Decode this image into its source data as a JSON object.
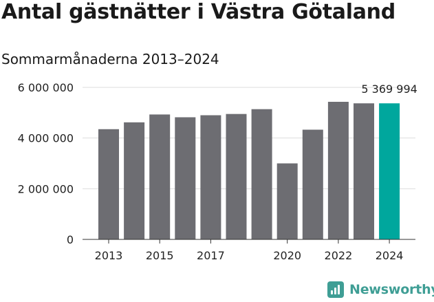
{
  "header": {
    "title": "Antal gästnätter i Västra Götaland",
    "subtitle": "Sommarmånaderna 2013–2024"
  },
  "chart_data": {
    "type": "bar",
    "categories": [
      "2013",
      "2014",
      "2015",
      "2016",
      "2017",
      "2018",
      "2019",
      "2020",
      "2021",
      "2022",
      "2023",
      "2024"
    ],
    "values": [
      4350000,
      4620000,
      4930000,
      4820000,
      4900000,
      4950000,
      5140000,
      3000000,
      4330000,
      5430000,
      5370000,
      5369994
    ],
    "x_tick_labels": [
      "2013",
      "",
      "2015",
      "",
      "2017",
      "",
      "",
      "2020",
      "",
      "2022",
      "",
      "2024"
    ],
    "y_ticks": [
      0,
      2000000,
      4000000,
      6000000
    ],
    "y_tick_labels": [
      "0",
      "2 000 000",
      "4 000 000",
      "6 000 000"
    ],
    "ylim": [
      0,
      6000000
    ],
    "highlight_index": 11,
    "annotation": "5 369 994",
    "grid": true,
    "colors": {
      "bar": "#6d6d72",
      "highlight": "#00a79d",
      "grid": "#dddddd",
      "axis": "#333333"
    }
  },
  "brand": {
    "name": "Newsworthy",
    "icon": "newsworthy-logo-icon",
    "color": "#3f9e95"
  }
}
